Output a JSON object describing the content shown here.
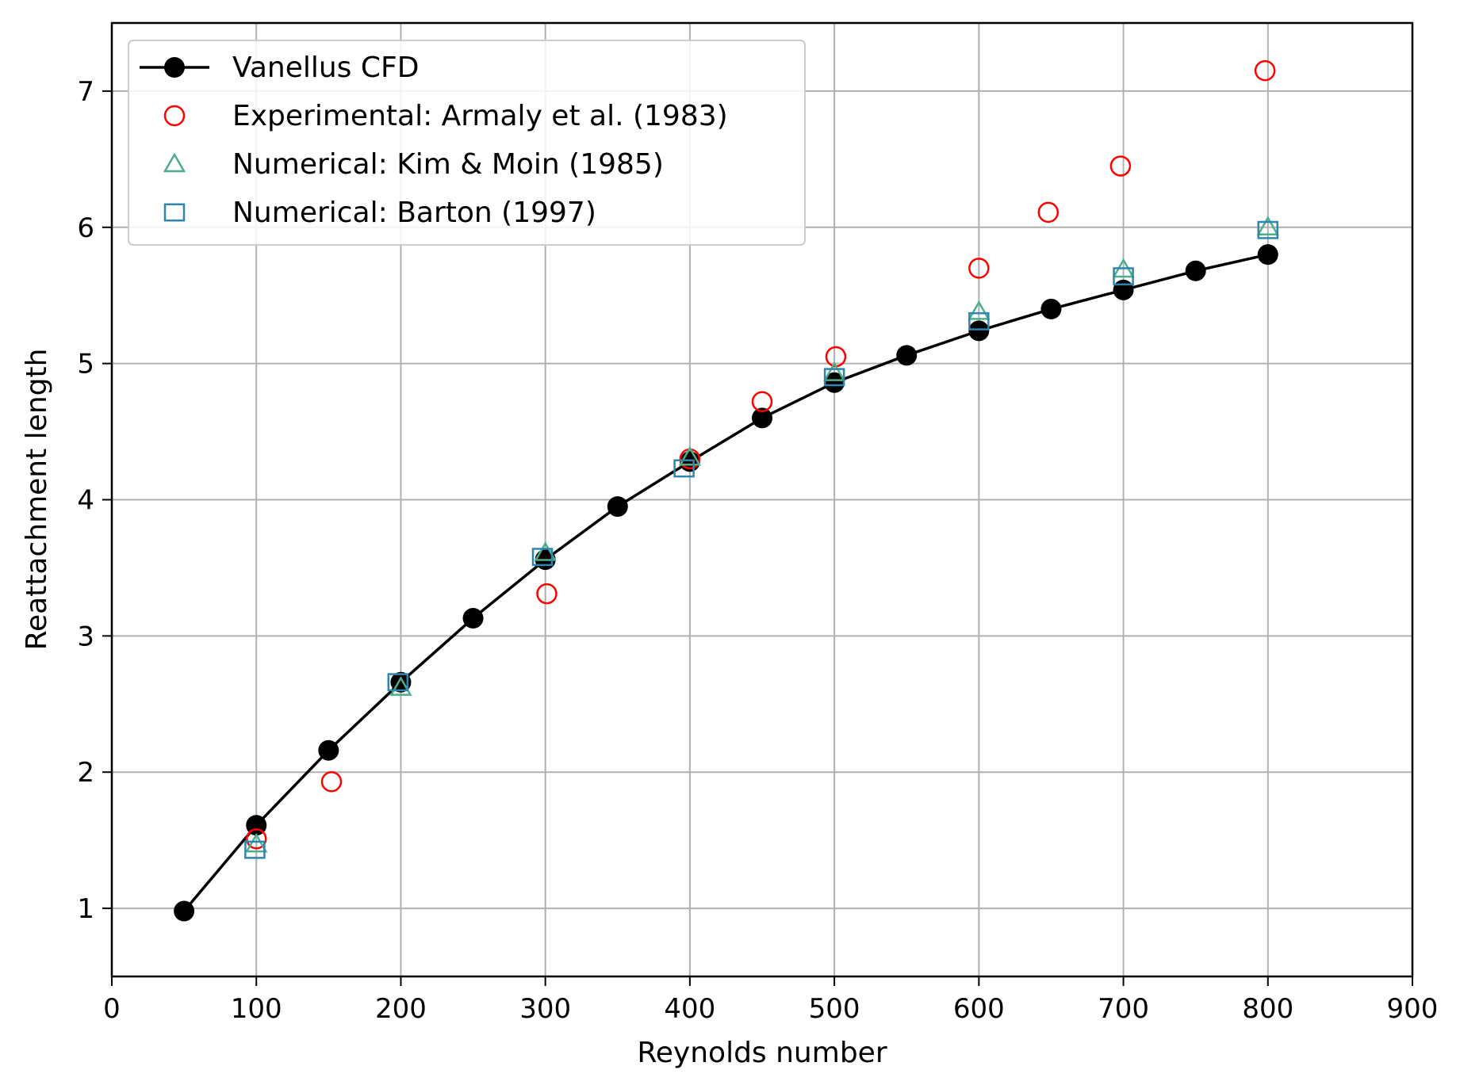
{
  "chart_data": {
    "type": "line",
    "title": "",
    "xlabel": "Reynolds number",
    "ylabel": "Reattachment length",
    "xlim": [
      0,
      900
    ],
    "ylim": [
      0.5,
      7.5
    ],
    "xticks": [
      "0",
      "100",
      "200",
      "300",
      "400",
      "500",
      "600",
      "700",
      "800",
      "900"
    ],
    "yticks": [
      "1",
      "2",
      "3",
      "4",
      "5",
      "6",
      "7"
    ],
    "grid": true,
    "legend_position": "top-left",
    "series": [
      {
        "name": "Vanellus CFD",
        "marker": "filled-circle",
        "line": true,
        "color": "#000000",
        "x": [
          50,
          100,
          150,
          200,
          250,
          300,
          350,
          400,
          450,
          500,
          550,
          600,
          650,
          700,
          750,
          800
        ],
        "y": [
          0.98,
          1.61,
          2.16,
          2.66,
          3.13,
          3.56,
          3.95,
          4.28,
          4.6,
          4.86,
          5.06,
          5.24,
          5.4,
          5.54,
          5.68,
          5.8
        ]
      },
      {
        "name": "Experimental: Armaly et al. (1983)",
        "marker": "open-circle",
        "line": false,
        "color": "#ff0000",
        "x": [
          100,
          152,
          301,
          400,
          450,
          501,
          600,
          648,
          698,
          798
        ],
        "y": [
          1.51,
          1.93,
          3.31,
          4.3,
          4.72,
          5.05,
          5.7,
          6.11,
          6.45,
          7.15
        ]
      },
      {
        "name": "Numerical: Kim & Moin (1985)",
        "marker": "open-triangle",
        "line": false,
        "color": "#4daf8a",
        "x": [
          100,
          200,
          300,
          400,
          500,
          600,
          700,
          800
        ],
        "y": [
          1.47,
          2.62,
          3.61,
          4.31,
          4.93,
          5.38,
          5.69,
          6.0
        ]
      },
      {
        "name": "Numerical: Barton (1997)",
        "marker": "open-square",
        "line": false,
        "color": "#2e86b0",
        "x": [
          99,
          198,
          298,
          396,
          500,
          600,
          700,
          800
        ],
        "y": [
          1.43,
          2.66,
          3.58,
          4.23,
          4.9,
          5.31,
          5.64,
          5.98
        ]
      }
    ]
  }
}
